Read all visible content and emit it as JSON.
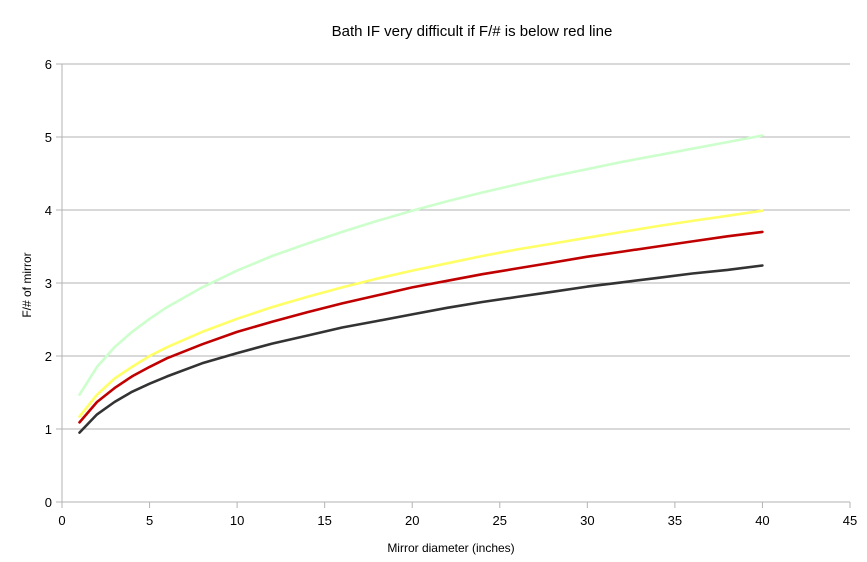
{
  "chart_data": {
    "type": "line",
    "title": "Bath IF very difficult if F/# is below red line",
    "xlabel": "Mirror diameter (inches)",
    "ylabel": "F/#  of mirror",
    "xlim": [
      0,
      45
    ],
    "ylim": [
      0,
      6
    ],
    "xticks": [
      0,
      5,
      10,
      15,
      20,
      25,
      30,
      35,
      40,
      45
    ],
    "yticks": [
      0,
      1,
      2,
      3,
      4,
      5,
      6
    ],
    "grid": "horizontal",
    "x": [
      1,
      2,
      3,
      4,
      5,
      6,
      8,
      10,
      12,
      14,
      16,
      18,
      20,
      22,
      24,
      26,
      28,
      30,
      32,
      34,
      36,
      38,
      40
    ],
    "series": [
      {
        "color": "#ccffcc",
        "values": [
          1.47,
          1.85,
          2.12,
          2.33,
          2.51,
          2.67,
          2.94,
          3.17,
          3.37,
          3.54,
          3.7,
          3.85,
          3.99,
          4.12,
          4.24,
          4.35,
          4.46,
          4.56,
          4.66,
          4.75,
          4.84,
          4.93,
          5.02
        ]
      },
      {
        "color": "#ffff66",
        "values": [
          1.17,
          1.47,
          1.69,
          1.85,
          2.0,
          2.12,
          2.33,
          2.51,
          2.67,
          2.81,
          2.94,
          3.06,
          3.17,
          3.27,
          3.37,
          3.46,
          3.54,
          3.62,
          3.7,
          3.78,
          3.85,
          3.92,
          3.99
        ]
      },
      {
        "color": "#c00000",
        "values": [
          1.09,
          1.37,
          1.56,
          1.72,
          1.85,
          1.97,
          2.16,
          2.33,
          2.47,
          2.6,
          2.72,
          2.83,
          2.94,
          3.03,
          3.12,
          3.2,
          3.28,
          3.36,
          3.43,
          3.5,
          3.57,
          3.64,
          3.7
        ]
      },
      {
        "color": "#333333",
        "values": [
          0.95,
          1.2,
          1.37,
          1.51,
          1.62,
          1.72,
          1.9,
          2.04,
          2.17,
          2.28,
          2.39,
          2.48,
          2.57,
          2.66,
          2.74,
          2.81,
          2.88,
          2.95,
          3.01,
          3.07,
          3.13,
          3.18,
          3.24
        ]
      }
    ]
  }
}
